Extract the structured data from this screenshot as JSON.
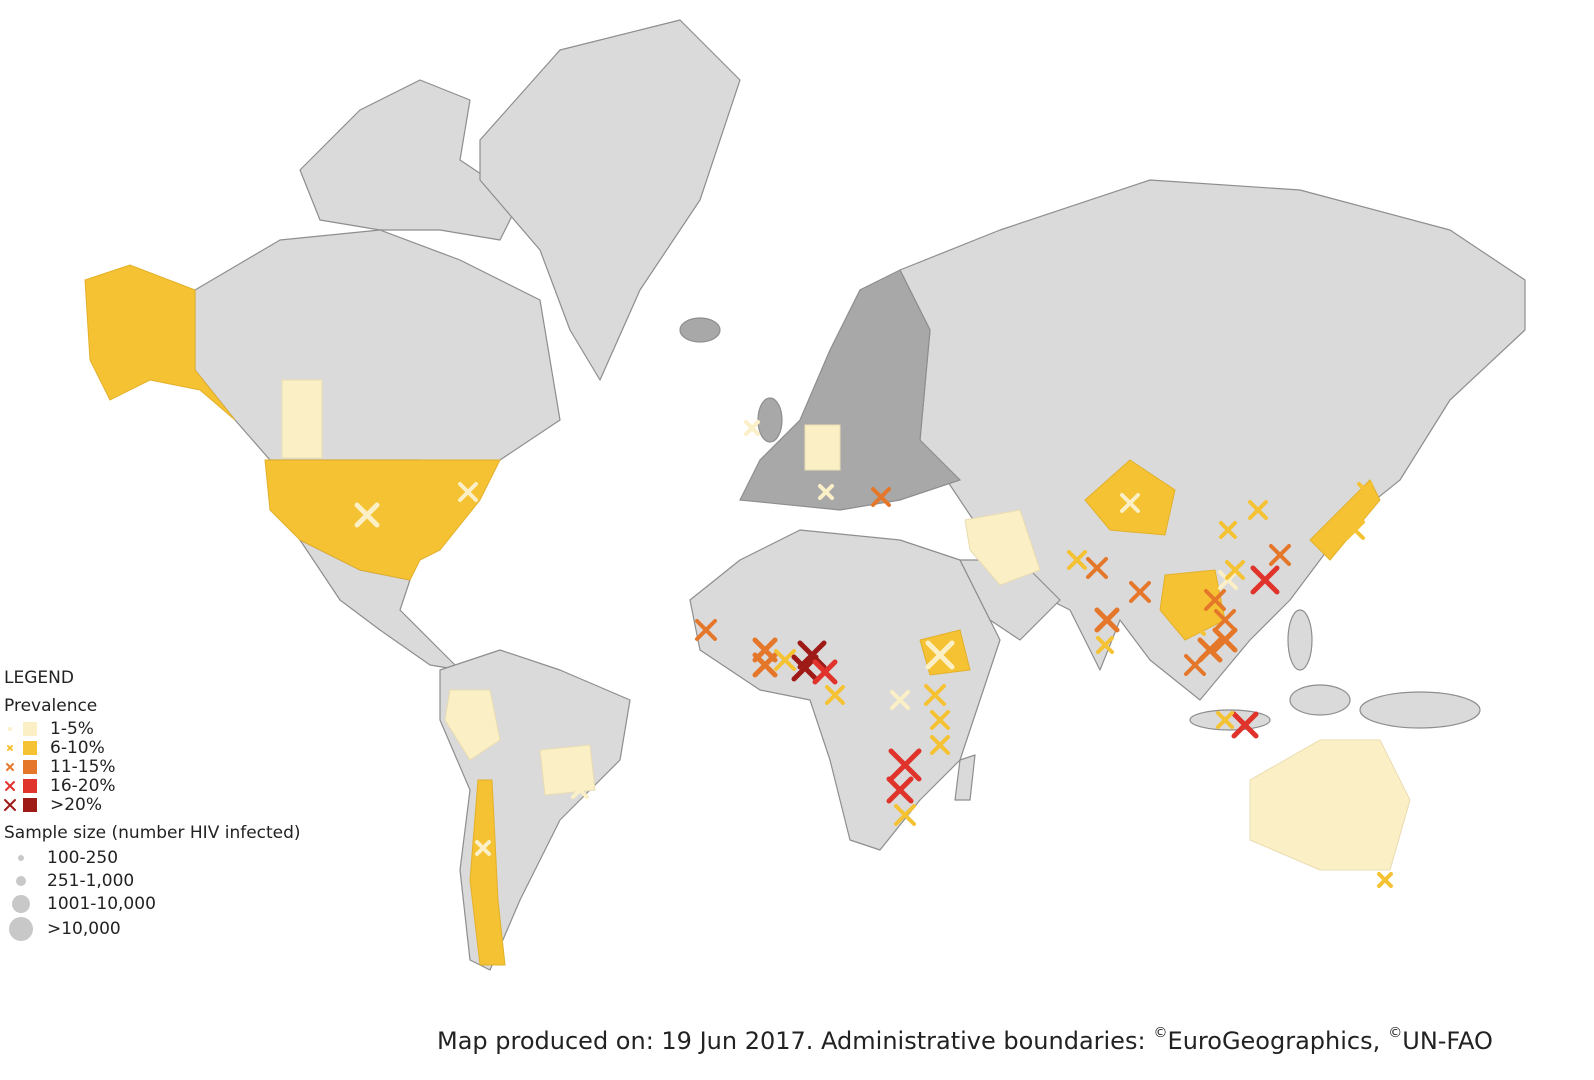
{
  "legend": {
    "title": "LEGEND",
    "prevalence_title": "Prevalence",
    "prevalence": [
      {
        "label": "1-5%",
        "color": "#fbefc6"
      },
      {
        "label": "6-10%",
        "color": "#f5c233"
      },
      {
        "label": "11-15%",
        "color": "#e5772b"
      },
      {
        "label": "16-20%",
        "color": "#e0332b"
      },
      {
        "label": ">20%",
        "color": "#9e1a17"
      }
    ],
    "sample_size_title": "Sample size (number HIV infected)",
    "sample_sizes": [
      "100-250",
      "251-1,000",
      "1001-10,000",
      ">10,000"
    ]
  },
  "footer": {
    "text": "Map produced on: 19 Jun 2017. Administrative boundaries:",
    "mark": "©",
    "source1": "EuroGeographics,",
    "source2": "UN-FAO"
  }
}
